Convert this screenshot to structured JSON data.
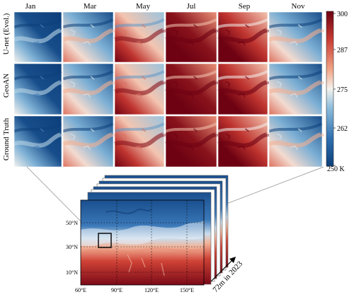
{
  "figure": {
    "months": [
      "Jan",
      "Mar",
      "May",
      "Jul",
      "Sep",
      "Nov"
    ],
    "rows": [
      "U-net (Evol.)",
      "GeoAN",
      "Ground Truth"
    ],
    "colorbar": {
      "ticks": [
        "300",
        "287",
        "275",
        "262",
        "250 K"
      ],
      "colors": [
        "#0c3f7a",
        "#2f6fb0",
        "#8fbfdd",
        "#f4f2ee",
        "#f2a789",
        "#c83a32",
        "#6e0212"
      ]
    },
    "map": {
      "lat_labels": [
        "50°N",
        "30°N",
        "10°N"
      ],
      "lon_labels": [
        "60°E",
        "90°E",
        "120°E",
        "150°E"
      ],
      "stack_label": "72m in 2023"
    }
  }
}
